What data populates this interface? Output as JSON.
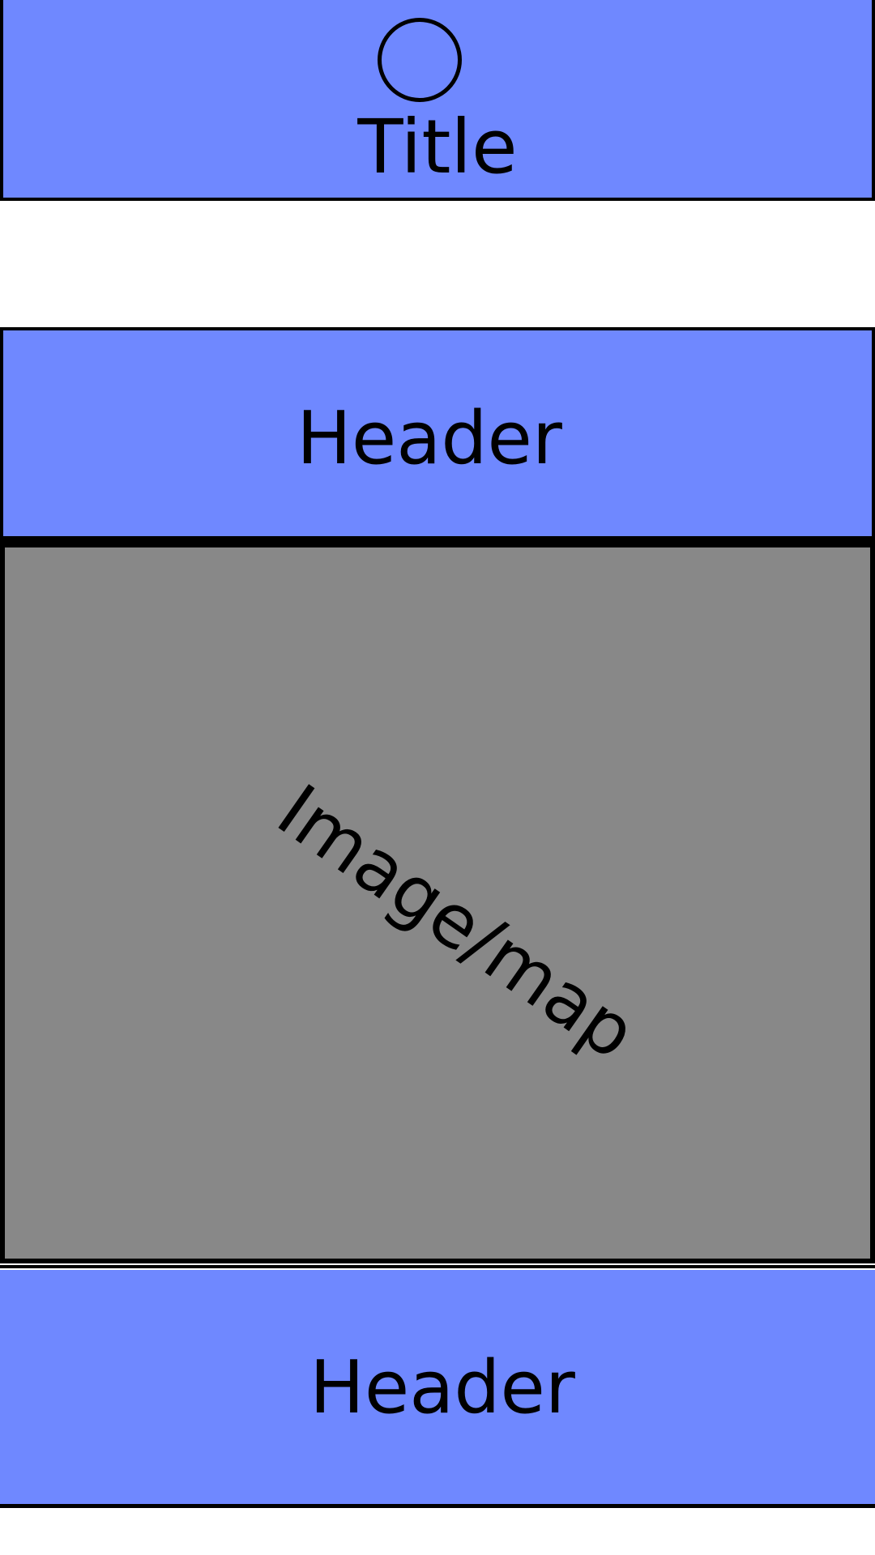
{
  "title_bar": {
    "title": "Title",
    "logo_icon": "circle-logo-icon"
  },
  "top_header": {
    "label": "Header"
  },
  "image_map": {
    "label": "Image/map"
  },
  "bottom_header": {
    "label": "Header"
  },
  "colors": {
    "accent_blue": "#6f88ff",
    "placeholder_gray": "#888888",
    "border": "#000000",
    "background": "#ffffff"
  }
}
